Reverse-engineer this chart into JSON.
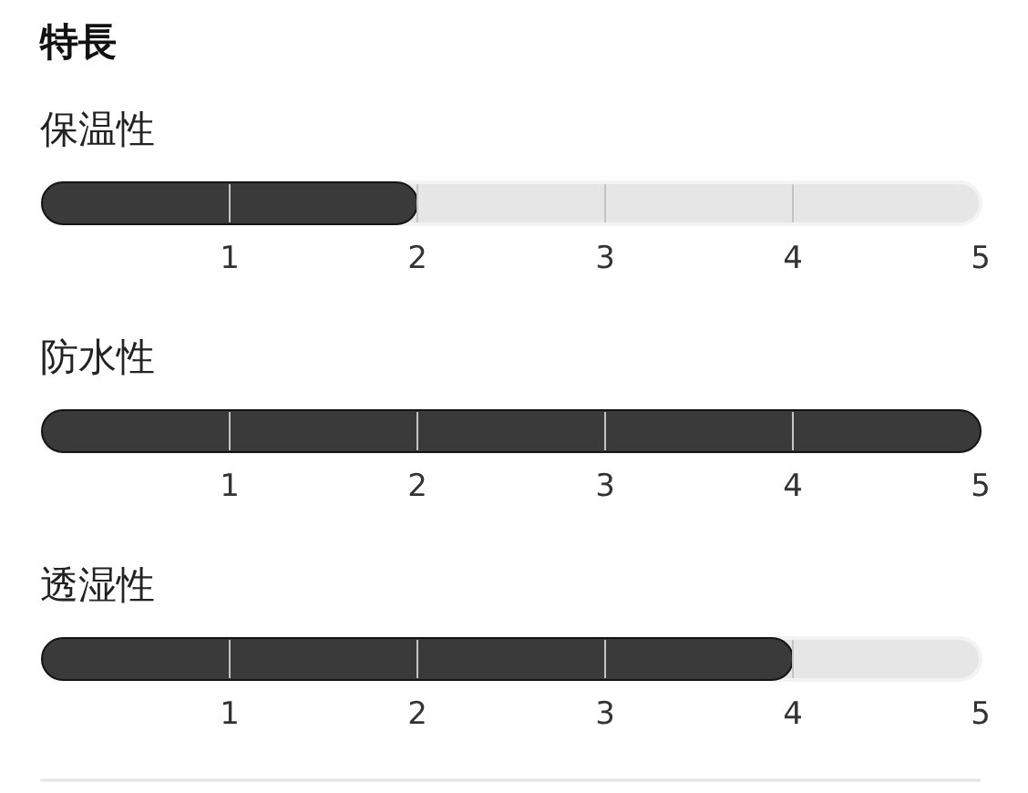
{
  "chart_data": [
    {
      "type": "bar",
      "title": "特長",
      "orientation": "horizontal",
      "categories": [
        "保温性"
      ],
      "values": [
        2
      ],
      "color": "#3a3a3a",
      "xlim": [
        0,
        5
      ],
      "xticks": [
        1,
        2,
        3,
        4,
        5
      ]
    },
    {
      "type": "bar",
      "orientation": "horizontal",
      "categories": [
        "防水性"
      ],
      "values": [
        5
      ],
      "color": "#3a3a3a",
      "xlim": [
        0,
        5
      ],
      "xticks": [
        1,
        2,
        3,
        4,
        5
      ]
    },
    {
      "type": "bar",
      "orientation": "horizontal",
      "categories": [
        "透湿性"
      ],
      "values": [
        4
      ],
      "color": "#3a3a3a",
      "xlim": [
        0,
        5
      ],
      "xticks": [
        1,
        2,
        3,
        4,
        5
      ]
    }
  ]
}
